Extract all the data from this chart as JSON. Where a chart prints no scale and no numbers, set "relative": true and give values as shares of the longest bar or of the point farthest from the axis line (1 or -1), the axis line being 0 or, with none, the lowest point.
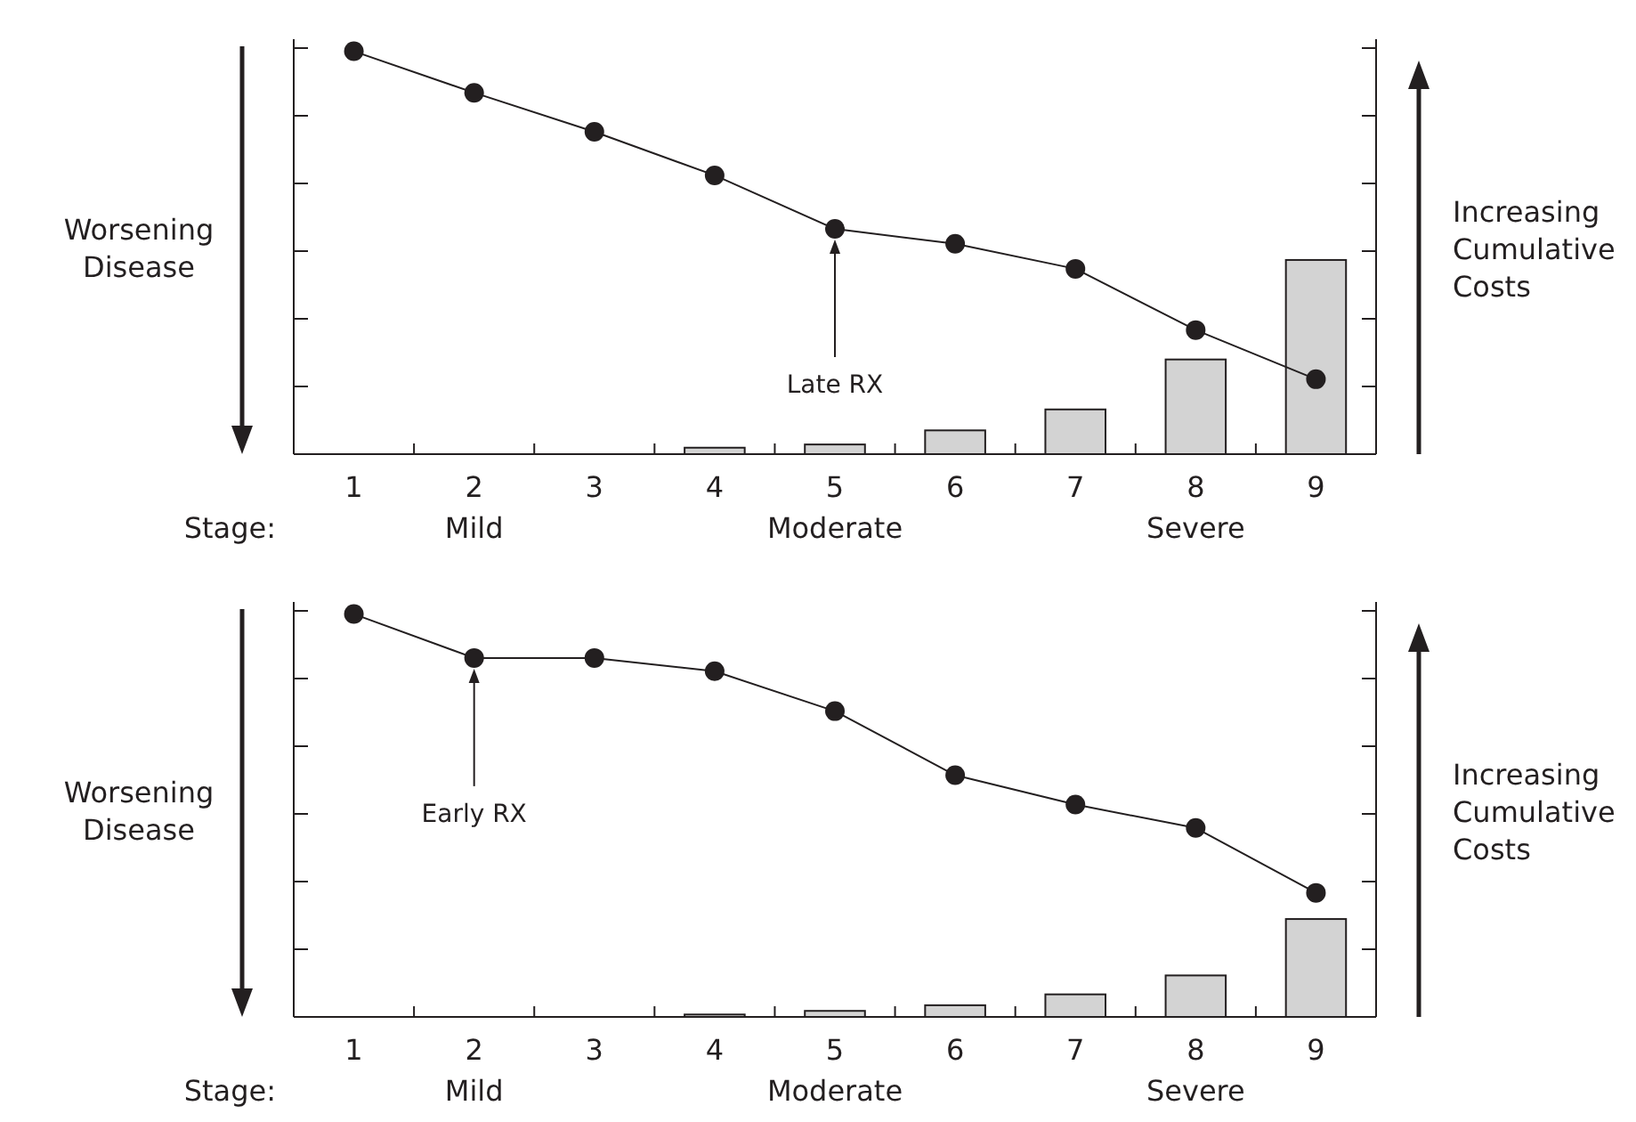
{
  "chart_data": [
    {
      "type": "bar",
      "relative": true,
      "categories": [
        "1",
        "2\nMild",
        "3",
        "4",
        "5\nModerate",
        "6",
        "7",
        "8\nSevere",
        "9"
      ],
      "xlabel": "Stage:",
      "ylabel": "Worsening Disease",
      "y2label": "Increasing Cumulative Costs",
      "marker": "circle",
      "annotations": [
        {
          "text": "Late RX",
          "x": "5\nModerate"
        }
      ],
      "series": [
        {
          "color": "#d3d3d3",
          "values": [
            null,
            null,
            null,
            0.016,
            0.024,
            0.059,
            0.111,
            0.235,
            0.482
          ]
        },
        {
          "type": "line",
          "color": "#231f20",
          "values": [
            1,
            0.897,
            0.8,
            0.692,
            0.559,
            0.522,
            0.46,
            0.308,
            0.186
          ]
        }
      ]
    },
    {
      "type": "bar",
      "relative": true,
      "categories": [
        "1",
        "2\nMild",
        "3",
        "4",
        "5\nModerate",
        "6",
        "7",
        "8\nSevere",
        "9"
      ],
      "xlabel": "Stage:",
      "ylabel": "Worsening Disease",
      "y2label": "Increasing Cumulative Costs",
      "marker": "circle",
      "annotations": [
        {
          "text": "Early RX",
          "x": "2\nMild"
        }
      ],
      "series": [
        {
          "color": "#d3d3d3",
          "values": [
            null,
            null,
            null,
            0.006,
            0.015,
            0.029,
            0.056,
            0.103,
            0.243
          ]
        },
        {
          "type": "line",
          "color": "#231f20",
          "values": [
            1,
            0.891,
            0.891,
            0.858,
            0.759,
            0.6,
            0.527,
            0.469,
            0.308
          ]
        }
      ]
    }
  ]
}
